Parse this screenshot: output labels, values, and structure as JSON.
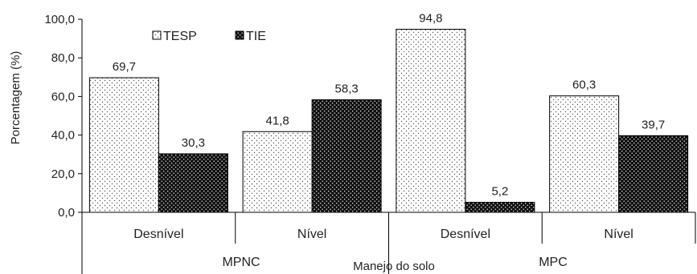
{
  "chart_data": {
    "type": "bar",
    "xlabel": "Manejo do solo",
    "ylabel": "Porcentagem (%)",
    "ylim": [
      0,
      100
    ],
    "yticks": [
      "0,0",
      "20,0",
      "40,0",
      "60,0",
      "80,0",
      "100,0"
    ],
    "groups": [
      "MPNC",
      "MPC"
    ],
    "categories": [
      "Desnível",
      "Nível",
      "Desnível",
      "Nível"
    ],
    "series": [
      {
        "name": "TESP",
        "values": [
          69.7,
          41.8,
          94.8,
          60.3
        ],
        "labels": [
          "69,7",
          "41,8",
          "94,8",
          "60,3"
        ],
        "pattern": "light-dots",
        "color": "#ffffff"
      },
      {
        "name": "TIE",
        "values": [
          30.3,
          58.3,
          5.2,
          39.7
        ],
        "labels": [
          "30,3",
          "58,3",
          "5,2",
          "39,7"
        ],
        "pattern": "dark-dots",
        "color": "#111111"
      }
    ],
    "legend_position": "top-left",
    "grid": false
  }
}
